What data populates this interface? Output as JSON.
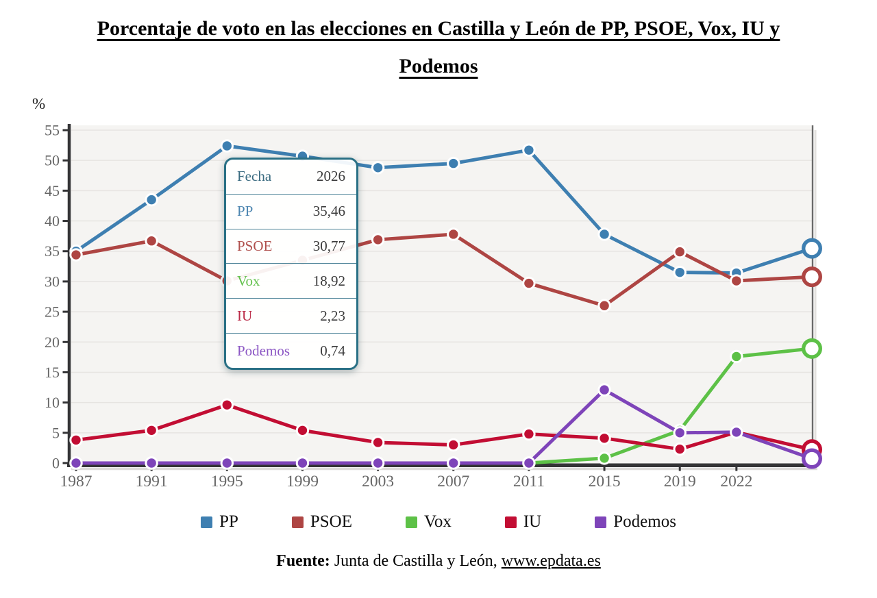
{
  "title": "Porcentaje de voto en las elecciones en Castilla y León de PP, PSOE, Vox, IU y\nPodemos",
  "y_axis_unit": "%",
  "tooltip": {
    "rows": [
      {
        "label": "Fecha",
        "value": "2026",
        "label_color": "#3a6b80"
      },
      {
        "label": "PP",
        "value": "35,46",
        "label_color": "#4d86b0"
      },
      {
        "label": "PSOE",
        "value": "30,77",
        "label_color": "#b0504d"
      },
      {
        "label": "Vox",
        "value": "18,92",
        "label_color": "#64c24e"
      },
      {
        "label": "IU",
        "value": "2,23",
        "label_color": "#bb2a47"
      },
      {
        "label": "Podemos",
        "value": "0,74",
        "label_color": "#8c57c4"
      }
    ],
    "value_color": "#3b3b3b"
  },
  "chart_data": {
    "type": "line",
    "title": "Porcentaje de voto en las elecciones en Castilla y León de PP, PSOE, Vox, IU y Podemos",
    "x": [
      1987,
      1991,
      1995,
      1999,
      2003,
      2007,
      2011,
      2015,
      2019,
      2022,
      2026
    ],
    "x_tick_labels": [
      "1987",
      "1991",
      "1995",
      "1999",
      "2003",
      "2007",
      "2011",
      "2015",
      "2019",
      "2022"
    ],
    "y_ticks": [
      0,
      5,
      10,
      15,
      20,
      25,
      30,
      35,
      40,
      45,
      50,
      55
    ],
    "ylim": [
      0,
      55
    ],
    "ylabel": "%",
    "grid": true,
    "legend_position": "bottom",
    "hover_x": 2026,
    "series": [
      {
        "name": "PP",
        "color": "#3e7fb1",
        "values": [
          35.0,
          43.5,
          52.4,
          50.7,
          48.8,
          49.5,
          51.7,
          37.8,
          31.5,
          31.4,
          35.46
        ]
      },
      {
        "name": "PSOE",
        "color": "#ae4543",
        "values": [
          34.4,
          36.7,
          30.1,
          33.5,
          36.9,
          37.8,
          29.7,
          26.0,
          34.9,
          30.1,
          30.77
        ]
      },
      {
        "name": "Vox",
        "color": "#5dc147",
        "values": [
          0,
          0,
          0,
          0,
          0,
          0,
          0,
          0.8,
          5.4,
          17.6,
          18.92
        ]
      },
      {
        "name": "IU",
        "color": "#c20d33",
        "values": [
          3.8,
          5.4,
          9.6,
          5.4,
          3.4,
          3.0,
          4.8,
          4.1,
          2.3,
          5.1,
          2.23
        ]
      },
      {
        "name": "Podemos",
        "color": "#7e44b9",
        "values": [
          0,
          0,
          0,
          0,
          0,
          0,
          0,
          12.1,
          5.0,
          5.1,
          0.74
        ]
      }
    ],
    "colors": {
      "axis": "#343436",
      "grid": "#e6e4e1",
      "plot_bg": "#f5f4f2",
      "tick_label": "#666666",
      "right_border": "#6a6a6a"
    }
  },
  "source": {
    "prefix": "Fuente:",
    "text": " Junta de Castilla y León, ",
    "link": "www.epdata.es"
  }
}
